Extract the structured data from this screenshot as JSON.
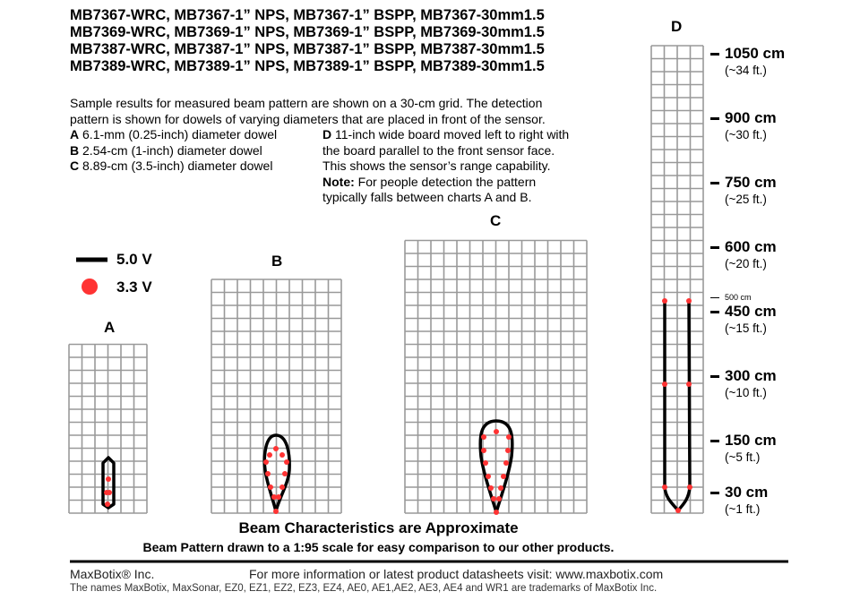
{
  "header": {
    "title_lines": [
      "MB7367-WRC, MB7367-1” NPS, MB7367-1” BSPP, MB7367-30mm1.5",
      "MB7369-WRC, MB7369-1” NPS, MB7369-1” BSPP, MB7369-30mm1.5",
      "MB7387-WRC, MB7387-1” NPS, MB7387-1” BSPP, MB7387-30mm1.5",
      "MB7389-WRC, MB7389-1” NPS, MB7389-1” BSPP, MB7389-30mm1.5"
    ]
  },
  "description": {
    "intro_lines": [
      "Sample results for measured beam pattern are shown on a 30-cm grid. The detection",
      "pattern is shown for dowels of varying diameters that are placed in front of the sensor."
    ],
    "items": [
      {
        "key": "A",
        "text": " 6.1-mm (0.25-inch) diameter dowel"
      },
      {
        "key": "B",
        "text": " 2.54-cm (1-inch) diameter dowel"
      },
      {
        "key": "C",
        "text": " 8.89-cm (3.5-inch) diameter dowel"
      }
    ],
    "d_key": "D",
    "d_lines": [
      " 11-inch wide board moved left to right with",
      "the board parallel to the front sensor face.",
      "This shows the sensor’s range capability."
    ],
    "note_key": "Note:",
    "note_lines": [
      " For people detection the pattern",
      "typically falls between charts A and B."
    ]
  },
  "legend": {
    "line_label": "5.0 V",
    "dot_label": "3.3 V",
    "line_color": "#000000",
    "dot_color": "#ff3333"
  },
  "charts": {
    "a_label": "A",
    "b_label": "B",
    "c_label": "C",
    "d_label": "D",
    "grid_color": "#999999",
    "grid_cell": "30 cm"
  },
  "scale": {
    "small_label": "500 cm",
    "marks": [
      {
        "value": "1050 cm",
        "feet": "(~34 ft.)"
      },
      {
        "value": "900 cm",
        "feet": "(~30 ft.)"
      },
      {
        "value": "750 cm",
        "feet": "(~25 ft.)"
      },
      {
        "value": "600 cm",
        "feet": "(~20 ft.)"
      },
      {
        "value": "450 cm",
        "feet": "(~15 ft.)"
      },
      {
        "value": "300 cm",
        "feet": "(~10 ft.)"
      },
      {
        "value": "150 cm",
        "feet": "(~5 ft.)"
      },
      {
        "value": "30 cm",
        "feet": "(~1 ft.)"
      }
    ]
  },
  "captions": {
    "approx": "Beam Characteristics are Approximate",
    "scale_note": "Beam Pattern drawn to a 1:95 scale for easy comparison to our other products."
  },
  "footer": {
    "company": "MaxBotix® Inc.",
    "info": "For more information or latest product datasheets visit:  www.maxbotix.com",
    "trademarks": "The names MaxBotix, MaxSonar, EZ0, EZ1, EZ2, EZ3, EZ4, AE0, AE1,AE2, AE3, AE4 and WR1 are trademarks of MaxBotix Inc."
  }
}
